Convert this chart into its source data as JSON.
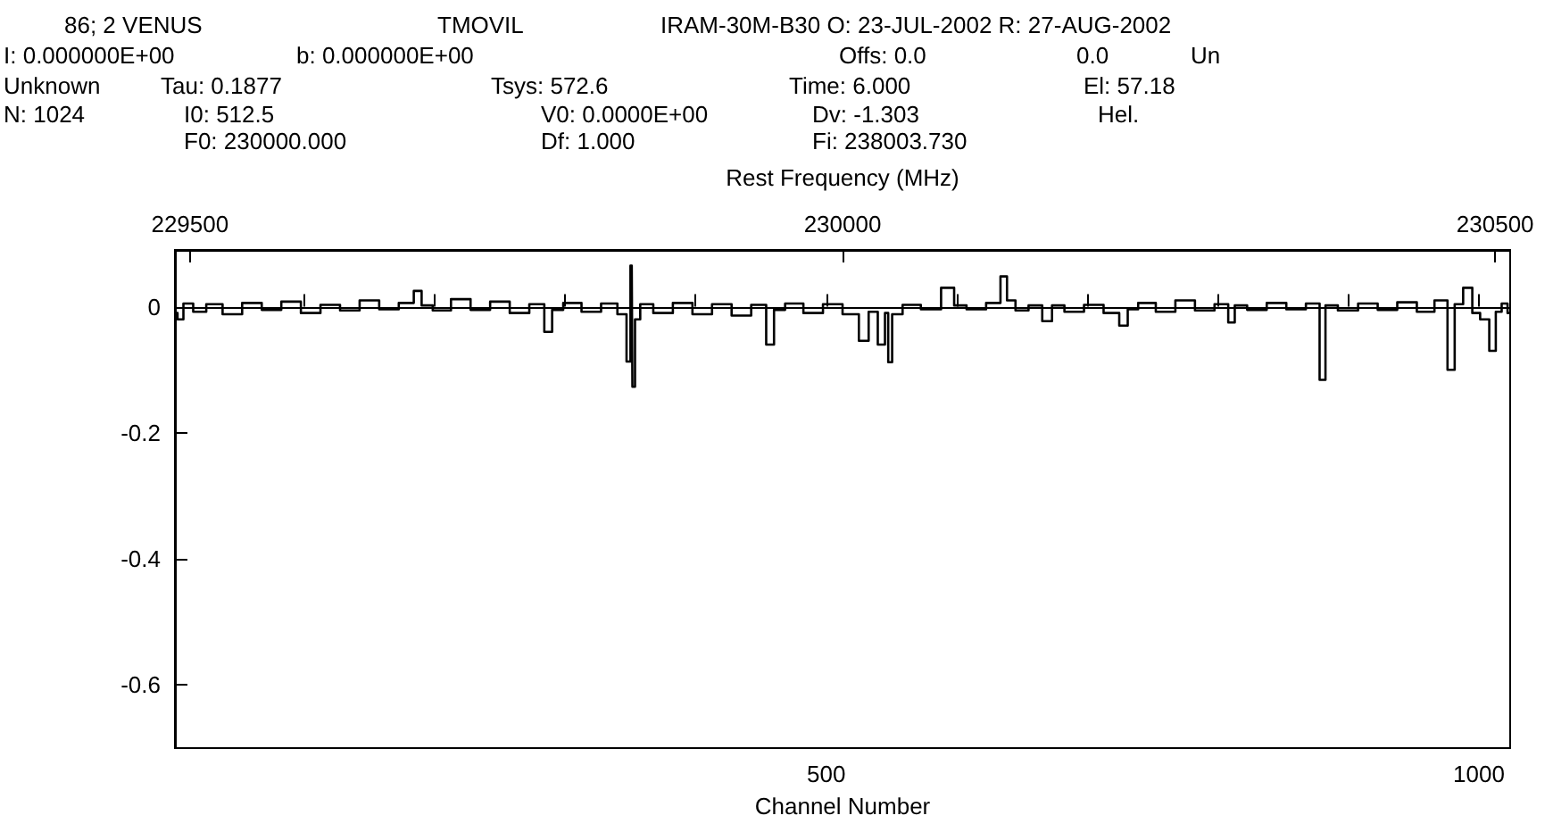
{
  "chart_data": {
    "type": "step",
    "xlabel": "Channel Number",
    "x2label": "Rest Frequency (MHz)",
    "annotations": [
      "86; 2 VENUS",
      "TMOVIL",
      "IRAM-30M-B30 O: 23-JUL-2002 R: 27-AUG-2002",
      "I: 0.000000E+00",
      "b: 0.000000E+00",
      "Offs: 0.0",
      "0.0",
      "Un",
      "Unknown",
      "Tau: 0.1877",
      "Tsys: 572.6",
      "Time: 6.000",
      "El: 57.18",
      "N: 1024",
      "I0: 512.5",
      "V0: 0.0000E+00",
      "Dv: -1.303",
      "Hel.",
      "F0: 230000.000",
      "Df: 1.000",
      "Fi: 238003.730"
    ],
    "xlim": [
      1,
      1024
    ],
    "xticks": [
      {
        "value": 100,
        "label": null
      },
      {
        "value": 200,
        "label": null
      },
      {
        "value": 300,
        "label": null
      },
      {
        "value": 400,
        "label": null
      },
      500,
      {
        "value": 600,
        "label": null
      },
      {
        "value": 700,
        "label": null
      },
      {
        "value": 800,
        "label": null
      },
      {
        "value": 900,
        "label": null
      },
      1000
    ],
    "x2lim": [
      229488.5,
      230511.5
    ],
    "x2ticks": [
      229500,
      230000,
      230500
    ],
    "ylim": [
      -0.7,
      0.09
    ],
    "yticks": [
      -0.6,
      -0.4,
      -0.2,
      0
    ],
    "series": [
      {
        "color": "#000000",
        "x": [
          1,
          5,
          10,
          20,
          30,
          45,
          60,
          75,
          90,
          105,
          120,
          135,
          150,
          165,
          180,
          188,
          192,
          205,
          220,
          235,
          250,
          265,
          280,
          288,
          292,
          305,
          320,
          335,
          345,
          349,
          351,
          352,
          355,
          360,
          375,
          390,
          405,
          420,
          435,
          450,
          458,
          462,
          475,
          490,
          505,
          520,
          530,
          535,
          544,
          546,
          549,
          552,
          565,
          580,
          596,
          600,
          615,
          630,
          637,
          640,
          650,
          660,
          671,
          675,
          690,
          705,
          720,
          729,
          733,
          745,
          760,
          775,
          790,
          805,
          811,
          815,
          830,
          845,
          860,
          875,
          881,
          884,
          900,
          915,
          930,
          945,
          960,
          972,
          980,
          983,
          993,
          997,
          1005,
          1011,
          1015,
          1020,
          1024
        ],
        "values": [
          -0.01,
          -0.02,
          0.005,
          -0.008,
          0.004,
          -0.012,
          0.006,
          -0.005,
          0.008,
          -0.01,
          0.003,
          -0.006,
          0.01,
          -0.004,
          0.006,
          0.025,
          0.002,
          -0.006,
          0.012,
          -0.005,
          0.008,
          -0.01,
          0.004,
          -0.04,
          -0.005,
          0.006,
          -0.008,
          0.005,
          -0.012,
          -0.087,
          0.065,
          -0.127,
          -0.02,
          0.004,
          -0.01,
          0.006,
          -0.012,
          0.004,
          -0.014,
          0.003,
          -0.06,
          -0.005,
          0.005,
          -0.01,
          0.004,
          -0.012,
          -0.054,
          -0.008,
          -0.06,
          -0.01,
          -0.088,
          -0.012,
          0.003,
          -0.004,
          0.03,
          0.002,
          -0.004,
          0.006,
          0.048,
          0.01,
          -0.006,
          0.002,
          -0.023,
          0.002,
          -0.008,
          0.003,
          -0.01,
          -0.03,
          -0.004,
          0.006,
          -0.008,
          0.01,
          -0.006,
          0.004,
          -0.025,
          0.002,
          -0.005,
          0.006,
          -0.004,
          0.005,
          -0.116,
          0.002,
          -0.006,
          0.005,
          -0.005,
          0.007,
          -0.008,
          0.01,
          -0.1,
          0.004,
          0.03,
          -0.01,
          -0.02,
          -0.07,
          -0.008,
          0.005,
          -0.01
        ]
      }
    ]
  }
}
